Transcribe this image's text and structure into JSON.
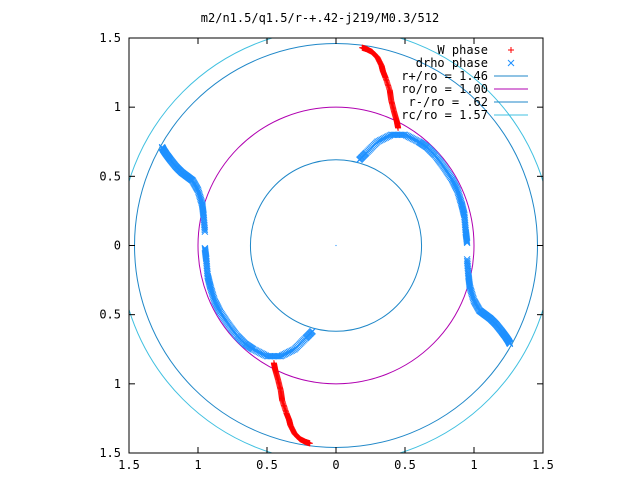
{
  "chart_data": {
    "type": "scatter",
    "title": "m2/n1.5/q1.5/r-+.42-j219/M0.3/512",
    "xlabel": "",
    "ylabel": "",
    "xlim": [
      -1.5,
      1.5
    ],
    "ylim": [
      -1.5,
      1.5
    ],
    "x_ticks": [
      -1.5,
      -1,
      -0.5,
      0,
      0.5,
      1,
      1.5
    ],
    "x_tick_labels": [
      "1.5",
      "1",
      "0.5",
      "0",
      "0.5",
      "1",
      "1.5"
    ],
    "y_ticks": [
      1.5,
      1,
      0.5,
      0,
      -0.5,
      -1,
      -1.5
    ],
    "y_tick_labels": [
      "1.5",
      "1",
      "0.5",
      "0",
      "0.5",
      "1",
      "1.5"
    ],
    "grid": false,
    "legend_position": "top-right",
    "colors": {
      "w_phase": "#ff0000",
      "drho_phase": "#1e90ff",
      "r_plus": "#1f87c8",
      "ro": "#b000b0",
      "r_minus": "#1f87c8",
      "rc": "#40c0e0"
    },
    "series": [
      {
        "name": "W phase",
        "marker": "plus",
        "branches": [
          {
            "x": [
              0.19,
              0.22,
              0.26,
              0.3,
              0.33,
              0.34,
              0.36,
              0.39,
              0.4,
              0.42,
              0.44,
              0.45
            ],
            "y": [
              1.43,
              1.42,
              1.4,
              1.36,
              1.3,
              1.26,
              1.21,
              1.12,
              1.05,
              0.97,
              0.9,
              0.85
            ]
          },
          {
            "x": [
              -0.19,
              -0.22,
              -0.26,
              -0.3,
              -0.33,
              -0.34,
              -0.36,
              -0.39,
              -0.4,
              -0.42,
              -0.44,
              -0.45
            ],
            "y": [
              -1.43,
              -1.42,
              -1.4,
              -1.36,
              -1.3,
              -1.26,
              -1.21,
              -1.12,
              -1.05,
              -0.97,
              -0.9,
              -0.85
            ]
          }
        ]
      },
      {
        "name": "drho phase",
        "marker": "x",
        "branches": [
          {
            "x": [
              0.17,
              0.22,
              0.3,
              0.4,
              0.5,
              0.6,
              0.66,
              0.72,
              0.78,
              0.84,
              0.88,
              0.91,
              0.93,
              0.94,
              0.95
            ],
            "y": [
              0.62,
              0.67,
              0.75,
              0.8,
              0.8,
              0.75,
              0.71,
              0.65,
              0.57,
              0.48,
              0.4,
              0.3,
              0.22,
              0.1,
              0.02
            ]
          },
          {
            "x": [
              -0.17,
              -0.22,
              -0.3,
              -0.4,
              -0.5,
              -0.6,
              -0.66,
              -0.72,
              -0.78,
              -0.84,
              -0.88,
              -0.91,
              -0.93,
              -0.94,
              -0.95
            ],
            "y": [
              -0.62,
              -0.67,
              -0.75,
              -0.8,
              -0.8,
              -0.75,
              -0.71,
              -0.65,
              -0.57,
              -0.48,
              -0.4,
              -0.3,
              -0.22,
              -0.1,
              -0.02
            ]
          },
          {
            "x": [
              0.95,
              0.96,
              0.97,
              1.0,
              1.04,
              1.08,
              1.12,
              1.16,
              1.2,
              1.23,
              1.25,
              1.26
            ],
            "y": [
              -0.1,
              -0.22,
              -0.3,
              -0.4,
              -0.47,
              -0.5,
              -0.53,
              -0.57,
              -0.62,
              -0.66,
              -0.69,
              -0.71
            ]
          },
          {
            "x": [
              -0.95,
              -0.96,
              -0.97,
              -1.0,
              -1.04,
              -1.08,
              -1.12,
              -1.16,
              -1.2,
              -1.23,
              -1.25,
              -1.26
            ],
            "y": [
              0.1,
              0.22,
              0.3,
              0.4,
              0.47,
              0.5,
              0.53,
              0.57,
              0.62,
              0.66,
              0.69,
              0.71
            ]
          }
        ]
      }
    ],
    "circles": [
      {
        "name": "r+/ro = 1.46",
        "r": 1.46,
        "color_key": "r_plus"
      },
      {
        "name": "ro/ro = 1.00",
        "r": 1.0,
        "color_key": "ro"
      },
      {
        "name": "r-/ro = .62",
        "r": 0.62,
        "color_key": "r_minus"
      },
      {
        "name": "rc/ro = 1.57",
        "r": 1.57,
        "color_key": "rc"
      }
    ]
  }
}
